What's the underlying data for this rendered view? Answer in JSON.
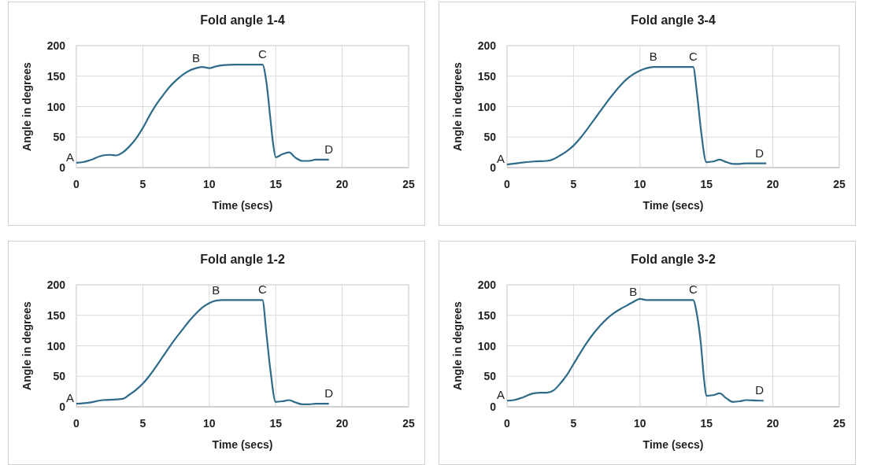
{
  "chart_data": [
    {
      "type": "line",
      "title": "Fold angle 1-4",
      "xlabel": "Time (secs)",
      "ylabel": "Angle in degrees",
      "xlim": [
        0,
        25
      ],
      "xticks": [
        0,
        5,
        10,
        15,
        20,
        25
      ],
      "ylim": [
        0,
        200
      ],
      "yticks": [
        0,
        50,
        100,
        150,
        200
      ],
      "grid": true,
      "marker": "none",
      "series": [
        {
          "color": "#2e6b8a",
          "x": [
            0,
            0.5,
            1,
            2,
            2.5,
            3,
            3.5,
            4,
            4.5,
            5,
            5.5,
            6,
            6.5,
            7,
            7.5,
            8,
            8.5,
            9,
            9.5,
            10,
            10.5,
            11,
            12,
            13,
            14,
            14.3,
            14.6,
            14.8,
            15,
            15.5,
            16,
            16.5,
            17,
            17.5,
            18,
            19
          ],
          "values": [
            8,
            9,
            12,
            20,
            21,
            20,
            25,
            35,
            48,
            65,
            85,
            103,
            118,
            132,
            143,
            152,
            159,
            163,
            165,
            163,
            166,
            168,
            169,
            169,
            169,
            140,
            80,
            40,
            17,
            22,
            25,
            16,
            11,
            11,
            13,
            13
          ]
        }
      ],
      "annotations": [
        {
          "text": "A",
          "x": 0,
          "y": 8
        },
        {
          "text": "B",
          "x": 9,
          "y": 163
        },
        {
          "text": "C",
          "x": 14,
          "y": 169
        },
        {
          "text": "D",
          "x": 19,
          "y": 13
        }
      ]
    },
    {
      "type": "line",
      "title": "Fold angle 3-4",
      "xlabel": "Time (secs)",
      "ylabel": "Angle in degrees",
      "xlim": [
        0,
        25
      ],
      "xticks": [
        0,
        5,
        10,
        15,
        20,
        25
      ],
      "ylim": [
        0,
        200
      ],
      "yticks": [
        0,
        50,
        100,
        150,
        200
      ],
      "grid": true,
      "marker": "none",
      "series": [
        {
          "color": "#2e6b8a",
          "x": [
            0,
            1,
            2,
            3,
            3.5,
            4,
            4.5,
            5,
            5.5,
            6,
            6.5,
            7,
            7.5,
            8,
            8.5,
            9,
            9.5,
            10,
            10.5,
            11,
            12,
            13,
            14,
            14.3,
            14.6,
            15,
            15.5,
            16,
            16.5,
            17,
            17.5,
            18,
            19,
            19.5
          ],
          "values": [
            5,
            8,
            10,
            11,
            14,
            20,
            27,
            36,
            48,
            62,
            77,
            92,
            107,
            121,
            134,
            145,
            153,
            159,
            163,
            165,
            165,
            165,
            165,
            120,
            60,
            9,
            10,
            13,
            9,
            6,
            6,
            7,
            7,
            7
          ]
        }
      ],
      "annotations": [
        {
          "text": "A",
          "x": 0,
          "y": 5
        },
        {
          "text": "B",
          "x": 11,
          "y": 165
        },
        {
          "text": "C",
          "x": 14,
          "y": 165
        },
        {
          "text": "D",
          "x": 19,
          "y": 7
        }
      ]
    },
    {
      "type": "line",
      "title": "Fold angle 1-2",
      "xlabel": "Time (secs)",
      "ylabel": "Angle in degrees",
      "xlim": [
        0,
        25
      ],
      "xticks": [
        0,
        5,
        10,
        15,
        20,
        25
      ],
      "ylim": [
        0,
        200
      ],
      "yticks": [
        0,
        50,
        100,
        150,
        200
      ],
      "grid": true,
      "marker": "none",
      "series": [
        {
          "color": "#2e6b8a",
          "x": [
            0,
            1,
            2,
            3,
            3.5,
            4,
            4.5,
            5,
            5.5,
            6,
            6.5,
            7,
            7.5,
            8,
            8.5,
            9,
            9.5,
            10,
            10.5,
            11,
            12,
            13,
            14,
            14.3,
            14.6,
            15,
            15.5,
            16,
            16.5,
            17,
            17.5,
            18,
            19
          ],
          "values": [
            5,
            7,
            11,
            12,
            13,
            20,
            28,
            38,
            51,
            66,
            82,
            98,
            113,
            127,
            141,
            153,
            163,
            170,
            174,
            175,
            175,
            175,
            175,
            120,
            60,
            8,
            9,
            11,
            7,
            4,
            4,
            5,
            5
          ]
        }
      ],
      "annotations": [
        {
          "text": "A",
          "x": 0,
          "y": 5
        },
        {
          "text": "B",
          "x": 10.5,
          "y": 174
        },
        {
          "text": "C",
          "x": 14,
          "y": 175
        },
        {
          "text": "D",
          "x": 19,
          "y": 5
        }
      ]
    },
    {
      "type": "line",
      "title": "Fold angle 3-2",
      "xlabel": "Time (secs)",
      "ylabel": "Angle in degrees",
      "xlim": [
        0,
        25
      ],
      "xticks": [
        0,
        5,
        10,
        15,
        20,
        25
      ],
      "ylim": [
        0,
        200
      ],
      "yticks": [
        0,
        50,
        100,
        150,
        200
      ],
      "grid": true,
      "marker": "none",
      "series": [
        {
          "color": "#2e6b8a",
          "x": [
            0,
            0.5,
            1,
            2,
            2.5,
            3,
            3.5,
            4,
            4.5,
            5,
            5.5,
            6,
            6.5,
            7,
            7.5,
            8,
            8.5,
            9,
            9.5,
            10,
            10.5,
            11,
            12,
            13,
            14,
            14.3,
            14.6,
            14.8,
            15,
            15.5,
            16,
            16.5,
            17,
            17.5,
            18,
            19,
            19.3
          ],
          "values": [
            10,
            11,
            14,
            22,
            23,
            23,
            27,
            38,
            52,
            70,
            88,
            105,
            120,
            133,
            144,
            153,
            160,
            166,
            172,
            177,
            175,
            175,
            175,
            175,
            175,
            150,
            100,
            50,
            18,
            19,
            22,
            14,
            8,
            9,
            11,
            10,
            10
          ]
        }
      ],
      "annotations": [
        {
          "text": "A",
          "x": 0,
          "y": 10
        },
        {
          "text": "B",
          "x": 9.5,
          "y": 172
        },
        {
          "text": "C",
          "x": 14,
          "y": 175
        },
        {
          "text": "D",
          "x": 19,
          "y": 10
        }
      ]
    }
  ]
}
